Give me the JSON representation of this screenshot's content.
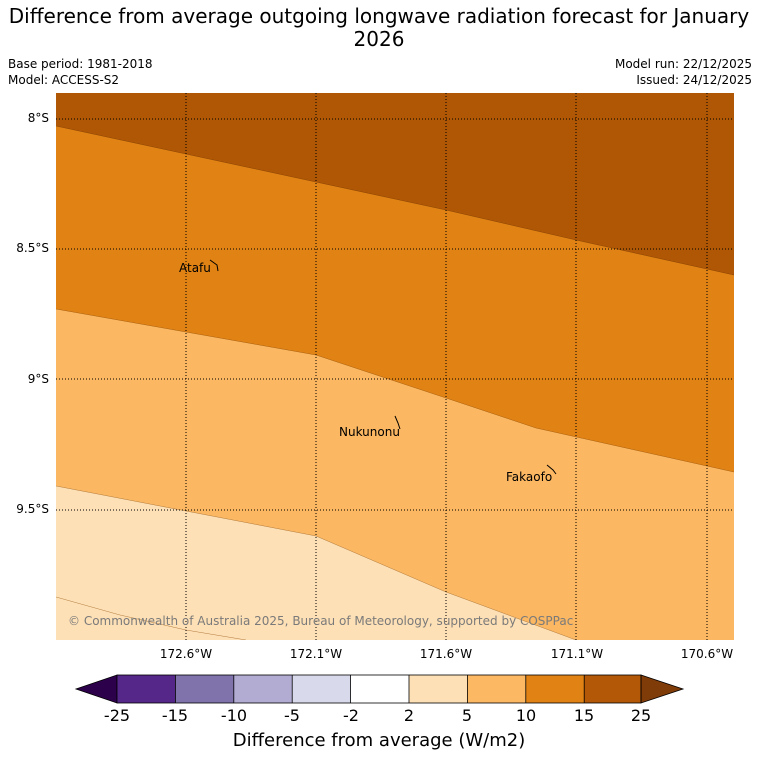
{
  "title": "Difference from average outgoing longwave radiation forecast for January 2026",
  "meta": {
    "base_period": "Base period: 1981-2018",
    "model": "Model: ACCESS-S2",
    "model_run": "Model run: 22/12/2025",
    "issued": "Issued: 24/12/2025"
  },
  "map": {
    "lat_labels": [
      "8°S",
      "8.5°S",
      "9°S",
      "9.5°S"
    ],
    "lon_labels": [
      "172.6°W",
      "172.1°W",
      "171.6°W",
      "171.1°W",
      "170.6°W"
    ],
    "places": [
      "Atafu",
      "Nukunonu",
      "Fakaofo"
    ],
    "copyright": "© Commonwealth of Australia 2025, Bureau of Meteorology, supported by COSPPac",
    "colors": {
      "band_15_25": "#b05706",
      "band_10_15": "#e08214",
      "band_5_10": "#fbb761",
      "band_2_5": "#fee0b6"
    }
  },
  "colorbar": {
    "ticks": [
      "-25",
      "-15",
      "-10",
      "-5",
      "-2",
      "2",
      "5",
      "10",
      "15",
      "25"
    ],
    "label": "Difference from average (W/m2)",
    "colors": [
      "#2d004b",
      "#542788",
      "#8073ac",
      "#b2abd2",
      "#d8daeb",
      "#ffffff",
      "#fee0b6",
      "#fdb863",
      "#e08214",
      "#b35806",
      "#7f3b08"
    ]
  }
}
